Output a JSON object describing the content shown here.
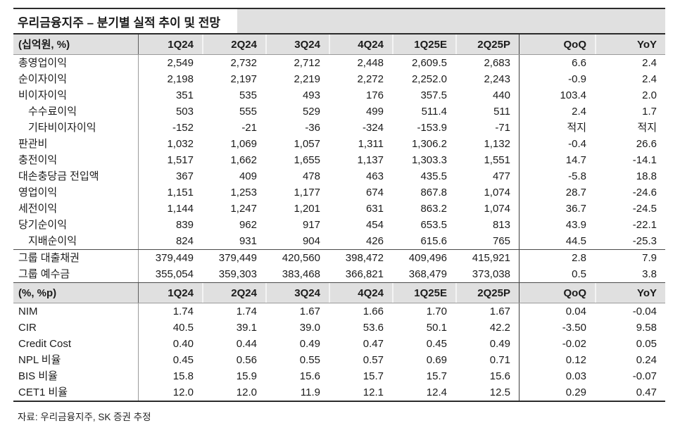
{
  "title": "우리금융지주 – 분기별 실적 추이 및 전망",
  "footer": "자료: 우리금융지주, SK 증권 추정",
  "columns": [
    "1Q24",
    "2Q24",
    "3Q24",
    "4Q24",
    "1Q25E",
    "2Q25P",
    "QoQ",
    "YoY"
  ],
  "table1": {
    "unit_label": "(십억원, %)",
    "rows": [
      {
        "label": "총영업이익",
        "indent": false,
        "section_top": false,
        "values": [
          "2,549",
          "2,732",
          "2,712",
          "2,448",
          "2,609.5",
          "2,683",
          "6.6",
          "2.4"
        ]
      },
      {
        "label": "순이자이익",
        "indent": false,
        "section_top": false,
        "values": [
          "2,198",
          "2,197",
          "2,219",
          "2,272",
          "2,252.0",
          "2,243",
          "-0.9",
          "2.4"
        ]
      },
      {
        "label": "비이자이익",
        "indent": false,
        "section_top": false,
        "values": [
          "351",
          "535",
          "493",
          "176",
          "357.5",
          "440",
          "103.4",
          "2.0"
        ]
      },
      {
        "label": "수수료이익",
        "indent": true,
        "section_top": false,
        "values": [
          "503",
          "555",
          "529",
          "499",
          "511.4",
          "511",
          "2.4",
          "1.7"
        ]
      },
      {
        "label": "기타비이자이익",
        "indent": true,
        "section_top": false,
        "values": [
          "-152",
          "-21",
          "-36",
          "-324",
          "-153.9",
          "-71",
          "적지",
          "적지"
        ]
      },
      {
        "label": "판관비",
        "indent": false,
        "section_top": false,
        "values": [
          "1,032",
          "1,069",
          "1,057",
          "1,311",
          "1,306.2",
          "1,132",
          "-0.4",
          "26.6"
        ]
      },
      {
        "label": "충전이익",
        "indent": false,
        "section_top": false,
        "values": [
          "1,517",
          "1,662",
          "1,655",
          "1,137",
          "1,303.3",
          "1,551",
          "14.7",
          "-14.1"
        ]
      },
      {
        "label": "대손충당금 전입액",
        "indent": false,
        "section_top": false,
        "values": [
          "367",
          "409",
          "478",
          "463",
          "435.5",
          "477",
          "-5.8",
          "18.8"
        ]
      },
      {
        "label": "영업이익",
        "indent": false,
        "section_top": false,
        "values": [
          "1,151",
          "1,253",
          "1,177",
          "674",
          "867.8",
          "1,074",
          "28.7",
          "-24.6"
        ]
      },
      {
        "label": "세전이익",
        "indent": false,
        "section_top": false,
        "values": [
          "1,144",
          "1,247",
          "1,201",
          "631",
          "863.2",
          "1,074",
          "36.7",
          "-24.5"
        ]
      },
      {
        "label": "당기순이익",
        "indent": false,
        "section_top": false,
        "values": [
          "839",
          "962",
          "917",
          "454",
          "653.5",
          "813",
          "43.9",
          "-22.1"
        ]
      },
      {
        "label": "지배순이익",
        "indent": true,
        "section_top": false,
        "values": [
          "824",
          "931",
          "904",
          "426",
          "615.6",
          "765",
          "44.5",
          "-25.3"
        ]
      },
      {
        "label": "그룹 대출채권",
        "indent": false,
        "section_top": true,
        "values": [
          "379,449",
          "379,449",
          "420,560",
          "398,472",
          "409,496",
          "415,921",
          "2.8",
          "7.9"
        ]
      },
      {
        "label": "그룹 예수금",
        "indent": false,
        "section_top": false,
        "values": [
          "355,054",
          "359,303",
          "383,468",
          "366,821",
          "368,479",
          "373,038",
          "0.5",
          "3.8"
        ]
      }
    ]
  },
  "table2": {
    "unit_label": "(%, %p)",
    "rows": [
      {
        "label": "NIM",
        "indent": false,
        "section_top": false,
        "values": [
          "1.74",
          "1.74",
          "1.67",
          "1.66",
          "1.70",
          "1.67",
          "0.04",
          "-0.04"
        ]
      },
      {
        "label": "CIR",
        "indent": false,
        "section_top": false,
        "values": [
          "40.5",
          "39.1",
          "39.0",
          "53.6",
          "50.1",
          "42.2",
          "-3.50",
          "9.58"
        ]
      },
      {
        "label": "Credit Cost",
        "indent": false,
        "section_top": false,
        "values": [
          "0.40",
          "0.44",
          "0.49",
          "0.47",
          "0.45",
          "0.49",
          "-0.02",
          "0.05"
        ]
      },
      {
        "label": "NPL 비율",
        "indent": false,
        "section_top": false,
        "values": [
          "0.45",
          "0.56",
          "0.55",
          "0.57",
          "0.69",
          "0.71",
          "0.12",
          "0.24"
        ]
      },
      {
        "label": "BIS 비율",
        "indent": false,
        "section_top": false,
        "values": [
          "15.8",
          "15.9",
          "15.6",
          "15.7",
          "15.7",
          "15.6",
          "0.03",
          "-0.07"
        ]
      },
      {
        "label": "CET1 비율",
        "indent": false,
        "section_top": false,
        "values": [
          "12.0",
          "12.0",
          "11.9",
          "12.1",
          "12.4",
          "12.5",
          "0.29",
          "0.47"
        ]
      }
    ]
  }
}
